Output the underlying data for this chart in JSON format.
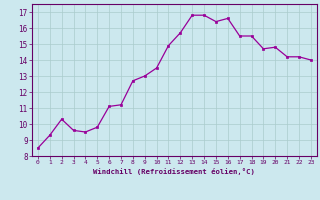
{
  "x": [
    0,
    1,
    2,
    3,
    4,
    5,
    6,
    7,
    8,
    9,
    10,
    11,
    12,
    13,
    14,
    15,
    16,
    17,
    18,
    19,
    20,
    21,
    22,
    23
  ],
  "y": [
    8.5,
    9.3,
    10.3,
    9.6,
    9.5,
    9.8,
    11.1,
    11.2,
    12.7,
    13.0,
    13.5,
    14.9,
    15.7,
    16.8,
    16.8,
    16.4,
    16.6,
    15.5,
    15.5,
    14.7,
    14.8,
    14.2,
    14.2,
    14.0
  ],
  "xlim": [
    -0.5,
    23.5
  ],
  "ylim": [
    8,
    17.5
  ],
  "xticks": [
    0,
    1,
    2,
    3,
    4,
    5,
    6,
    7,
    8,
    9,
    10,
    11,
    12,
    13,
    14,
    15,
    16,
    17,
    18,
    19,
    20,
    21,
    22,
    23
  ],
  "yticks": [
    8,
    9,
    10,
    11,
    12,
    13,
    14,
    15,
    16,
    17
  ],
  "xlabel": "Windchill (Refroidissement éolien,°C)",
  "line_color": "#990099",
  "marker_color": "#990099",
  "bg_color": "#cce8ee",
  "grid_color": "#aacccc",
  "axis_color": "#660066",
  "tick_color": "#660066",
  "xlabel_color": "#660066"
}
